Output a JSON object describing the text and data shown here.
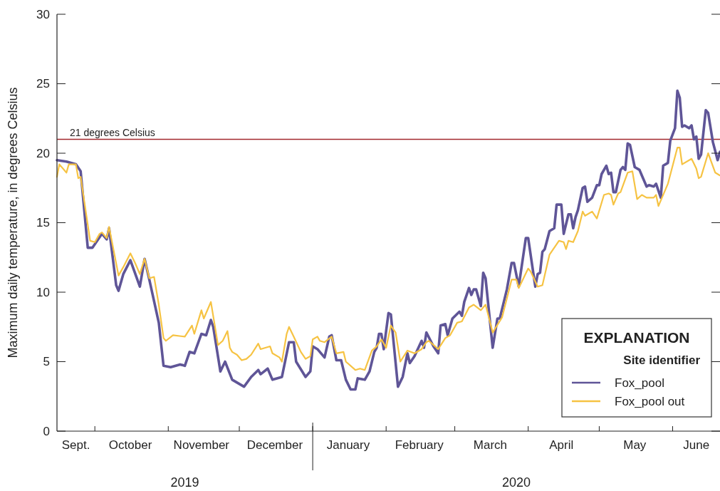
{
  "chart_data": {
    "type": "line",
    "ylabel": "Maximum daily temperature, in degrees Celsius",
    "legend_title": "Site identifier",
    "annotations": [
      "2019",
      "2020",
      "EXPLANATION"
    ],
    "xlim": [
      "2019-09-15",
      "2020-06-21"
    ],
    "xticks": [
      {
        "value": "2019-09-23",
        "label": "Sept."
      },
      {
        "value": "2019-10-01",
        "label": null
      },
      {
        "value": "2019-10-16",
        "label": "October"
      },
      {
        "value": "2019-11-01",
        "label": null
      },
      {
        "value": "2019-11-15",
        "label": "November"
      },
      {
        "value": "2019-12-01",
        "label": null
      },
      {
        "value": "2019-12-16",
        "label": "December"
      },
      {
        "value": "2020-01-01",
        "label": null
      },
      {
        "value": "2020-01-16",
        "label": "January"
      },
      {
        "value": "2020-02-01",
        "label": null
      },
      {
        "value": "2020-02-15",
        "label": "February"
      },
      {
        "value": "2020-03-01",
        "label": null
      },
      {
        "value": "2020-03-16",
        "label": "March"
      },
      {
        "value": "2020-04-01",
        "label": null
      },
      {
        "value": "2020-04-15",
        "label": "April"
      },
      {
        "value": "2020-05-01",
        "label": null
      },
      {
        "value": "2020-05-16",
        "label": "May"
      },
      {
        "value": "2020-06-01",
        "label": null
      },
      {
        "value": "2020-06-11",
        "label": "June"
      }
    ],
    "ylim": [
      0,
      30
    ],
    "yticks": [
      0,
      5,
      10,
      15,
      20,
      25,
      30
    ],
    "grid": false,
    "legend": "bottom right",
    "line_style": "solid",
    "marker": "none",
    "ref_lines": [
      {
        "axis": "y",
        "value": 21,
        "label": "21 degrees Celsius",
        "color": "#a3282e"
      }
    ],
    "series": [
      {
        "name": "Fox_pool",
        "color": "#5f5597",
        "x": [
          "2019-09-15",
          "2019-09-19",
          "2019-09-23",
          "2019-09-25",
          "2019-09-28",
          "2019-09-30",
          "2019-10-04",
          "2019-10-06",
          "2019-10-07",
          "2019-10-10",
          "2019-10-11",
          "2019-10-13",
          "2019-10-16",
          "2019-10-20",
          "2019-10-22",
          "2019-10-24",
          "2019-10-28",
          "2019-10-30",
          "2019-11-02",
          "2019-11-06",
          "2019-11-08",
          "2019-11-10",
          "2019-11-12",
          "2019-11-15",
          "2019-11-17",
          "2019-11-19",
          "2019-11-20",
          "2019-11-23",
          "2019-11-25",
          "2019-11-28",
          "2019-12-03",
          "2019-12-06",
          "2019-12-09",
          "2019-12-10",
          "2019-12-13",
          "2019-12-15",
          "2019-12-19",
          "2019-12-22",
          "2019-12-24",
          "2019-12-25",
          "2019-12-29",
          "2019-12-31",
          "2020-01-01",
          "2020-01-03",
          "2020-01-06",
          "2020-01-08",
          "2020-01-09",
          "2020-01-11",
          "2020-01-13",
          "2020-01-15",
          "2020-01-17",
          "2020-01-19",
          "2020-01-20",
          "2020-01-23",
          "2020-01-25",
          "2020-01-27",
          "2020-01-28",
          "2020-01-29",
          "2020-01-30",
          "2020-01-31",
          "2020-02-02",
          "2020-02-03",
          "2020-02-06",
          "2020-02-08",
          "2020-02-10",
          "2020-02-11",
          "2020-02-13",
          "2020-02-16",
          "2020-02-17",
          "2020-02-18",
          "2020-02-21",
          "2020-02-23",
          "2020-02-24",
          "2020-02-26",
          "2020-02-27",
          "2020-02-29",
          "2020-03-03",
          "2020-03-04",
          "2020-03-05",
          "2020-03-07",
          "2020-03-08",
          "2020-03-09",
          "2020-03-10",
          "2020-03-12",
          "2020-03-13",
          "2020-03-14",
          "2020-03-17",
          "2020-03-19",
          "2020-03-20",
          "2020-03-23",
          "2020-03-25",
          "2020-03-26",
          "2020-03-28",
          "2020-03-31",
          "2020-04-01",
          "2020-04-04",
          "2020-04-05",
          "2020-04-06",
          "2020-04-07",
          "2020-04-08",
          "2020-04-10",
          "2020-04-12",
          "2020-04-13",
          "2020-04-15",
          "2020-04-16",
          "2020-04-18",
          "2020-04-19",
          "2020-04-20",
          "2020-04-21",
          "2020-04-22",
          "2020-04-24",
          "2020-04-25",
          "2020-04-26",
          "2020-04-28",
          "2020-04-30",
          "2020-05-01",
          "2020-05-02",
          "2020-05-04",
          "2020-05-05",
          "2020-05-06",
          "2020-05-07",
          "2020-05-08",
          "2020-05-10",
          "2020-05-11",
          "2020-05-12",
          "2020-05-13",
          "2020-05-14",
          "2020-05-16",
          "2020-05-18",
          "2020-05-19",
          "2020-05-21",
          "2020-05-22",
          "2020-05-24",
          "2020-05-25",
          "2020-05-27",
          "2020-05-28",
          "2020-05-30",
          "2020-05-31",
          "2020-06-02",
          "2020-06-03",
          "2020-06-04",
          "2020-06-05",
          "2020-06-06",
          "2020-06-08",
          "2020-06-09",
          "2020-06-10",
          "2020-06-11",
          "2020-06-12",
          "2020-06-13",
          "2020-06-15",
          "2020-06-16",
          "2020-06-18",
          "2020-06-20",
          "2020-06-21"
        ],
        "values": [
          19.5,
          19.4,
          19.2,
          18.7,
          13.2,
          13.2,
          14.2,
          13.8,
          14.6,
          10.5,
          10.1,
          11.3,
          12.3,
          10.4,
          12.4,
          10.9,
          7.8,
          4.7,
          4.6,
          4.8,
          4.7,
          5.7,
          5.6,
          7.0,
          6.9,
          8.0,
          7.5,
          4.3,
          5.0,
          3.7,
          3.2,
          3.9,
          4.4,
          4.1,
          4.5,
          3.7,
          3.9,
          6.4,
          6.4,
          5.0,
          3.9,
          4.3,
          6.1,
          5.9,
          5.3,
          6.8,
          6.9,
          5.1,
          5.1,
          3.7,
          3.0,
          3.0,
          3.8,
          3.7,
          4.3,
          5.7,
          6.0,
          7.0,
          7.0,
          5.9,
          8.5,
          8.4,
          3.2,
          3.9,
          5.6,
          4.9,
          5.4,
          6.5,
          6.0,
          7.1,
          6.1,
          5.6,
          7.6,
          7.7,
          6.9,
          8.1,
          8.6,
          8.3,
          9.3,
          10.3,
          9.8,
          10.2,
          10.2,
          9.0,
          11.4,
          11.0,
          6.0,
          8.1,
          8.1,
          10.2,
          12.1,
          12.1,
          10.4,
          13.9,
          13.9,
          10.4,
          11.3,
          11.4,
          12.9,
          13.1,
          14.4,
          14.6,
          16.3,
          16.3,
          14.2,
          15.6,
          15.6,
          14.6,
          15.4,
          15.9,
          17.5,
          17.6,
          16.5,
          16.8,
          17.7,
          17.7,
          18.5,
          19.1,
          18.5,
          18.6,
          17.2,
          17.2,
          18.8,
          19.0,
          18.8,
          20.7,
          20.6,
          19.0,
          18.8,
          18.4,
          17.6,
          17.7,
          17.6,
          17.8,
          16.8,
          19.1,
          19.3,
          20.9,
          21.8,
          24.5,
          24.0,
          21.9,
          22.0,
          21.8,
          22.0,
          21.0,
          21.2,
          19.6,
          19.9,
          23.1,
          22.9,
          20.8,
          19.5,
          20.1
        ]
      },
      {
        "name": "Fox_pool out",
        "color": "#f6c343",
        "x": [
          "2019-09-15",
          "2019-09-16",
          "2019-09-19",
          "2019-09-20",
          "2019-09-23",
          "2019-09-24",
          "2019-09-25",
          "2019-09-29",
          "2019-10-01",
          "2019-10-03",
          "2019-10-04",
          "2019-10-06",
          "2019-10-07",
          "2019-10-11",
          "2019-10-13",
          "2019-10-16",
          "2019-10-18",
          "2019-10-20",
          "2019-10-22",
          "2019-10-24",
          "2019-10-26",
          "2019-10-28",
          "2019-10-30",
          "2019-10-31",
          "2019-11-03",
          "2019-11-08",
          "2019-11-11",
          "2019-11-12",
          "2019-11-15",
          "2019-11-16",
          "2019-11-18",
          "2019-11-19",
          "2019-11-22",
          "2019-11-24",
          "2019-11-26",
          "2019-11-27",
          "2019-11-28",
          "2019-11-30",
          "2019-12-02",
          "2019-12-04",
          "2019-12-06",
          "2019-12-09",
          "2019-12-10",
          "2019-12-14",
          "2019-12-15",
          "2019-12-18",
          "2019-12-19",
          "2019-12-21",
          "2019-12-22",
          "2019-12-24",
          "2019-12-27",
          "2019-12-29",
          "2019-12-31",
          "2020-01-01",
          "2020-01-03",
          "2020-01-04",
          "2020-01-06",
          "2020-01-09",
          "2020-01-11",
          "2020-01-14",
          "2020-01-15",
          "2020-01-19",
          "2020-01-21",
          "2020-01-23",
          "2020-01-26",
          "2020-01-28",
          "2020-01-30",
          "2020-02-01",
          "2020-02-03",
          "2020-02-05",
          "2020-02-07",
          "2020-02-10",
          "2020-02-13",
          "2020-02-16",
          "2020-02-18",
          "2020-02-19",
          "2020-02-23",
          "2020-02-26",
          "2020-02-28",
          "2020-03-02",
          "2020-03-04",
          "2020-03-07",
          "2020-03-09",
          "2020-03-12",
          "2020-03-14",
          "2020-03-17",
          "2020-03-21",
          "2020-03-25",
          "2020-03-27",
          "2020-03-28",
          "2020-04-01",
          "2020-04-02",
          "2020-04-05",
          "2020-04-07",
          "2020-04-10",
          "2020-04-14",
          "2020-04-16",
          "2020-04-17",
          "2020-04-18",
          "2020-04-20",
          "2020-04-22",
          "2020-04-24",
          "2020-04-25",
          "2020-04-28",
          "2020-04-30",
          "2020-05-03",
          "2020-05-05",
          "2020-05-06",
          "2020-05-07",
          "2020-05-09",
          "2020-05-10",
          "2020-05-13",
          "2020-05-15",
          "2020-05-17",
          "2020-05-19",
          "2020-05-21",
          "2020-05-24",
          "2020-05-25",
          "2020-05-26",
          "2020-05-30",
          "2020-06-03",
          "2020-06-04",
          "2020-06-05",
          "2020-06-09",
          "2020-06-11",
          "2020-06-12",
          "2020-06-13",
          "2020-06-16",
          "2020-06-19",
          "2020-06-21"
        ],
        "values": [
          18.3,
          19.2,
          18.6,
          19.2,
          19.2,
          18.2,
          18.3,
          13.7,
          13.6,
          14.2,
          14.3,
          13.9,
          14.7,
          11.2,
          11.8,
          12.8,
          12.1,
          11.3,
          12.4,
          11.0,
          11.1,
          9.1,
          6.7,
          6.5,
          6.9,
          6.8,
          7.6,
          7.0,
          8.7,
          8.1,
          8.9,
          9.3,
          6.2,
          6.5,
          7.2,
          6.0,
          5.7,
          5.5,
          5.1,
          5.2,
          5.5,
          6.3,
          5.9,
          6.1,
          5.6,
          5.3,
          5.0,
          7.0,
          7.5,
          6.8,
          5.7,
          5.2,
          5.4,
          6.6,
          6.8,
          6.5,
          6.4,
          6.8,
          5.6,
          5.7,
          5.0,
          4.4,
          4.5,
          4.4,
          5.8,
          6.1,
          6.6,
          6.0,
          7.6,
          7.1,
          5.0,
          5.8,
          5.6,
          5.9,
          6.4,
          6.5,
          5.9,
          6.7,
          6.9,
          7.8,
          7.9,
          8.9,
          9.1,
          8.7,
          9.1,
          7.1,
          8.2,
          10.9,
          10.9,
          10.3,
          11.7,
          11.5,
          10.4,
          10.5,
          12.7,
          13.7,
          13.6,
          13.1,
          13.7,
          13.6,
          14.4,
          15.8,
          15.5,
          15.8,
          15.3,
          17.0,
          17.1,
          17.0,
          16.3,
          17.1,
          17.2,
          18.6,
          18.7,
          16.7,
          17.0,
          16.8,
          16.8,
          17.0,
          16.2,
          17.8,
          20.4,
          20.4,
          19.2,
          19.6,
          18.9,
          18.2,
          18.3,
          20.0,
          18.6,
          18.4
        ]
      }
    ]
  }
}
